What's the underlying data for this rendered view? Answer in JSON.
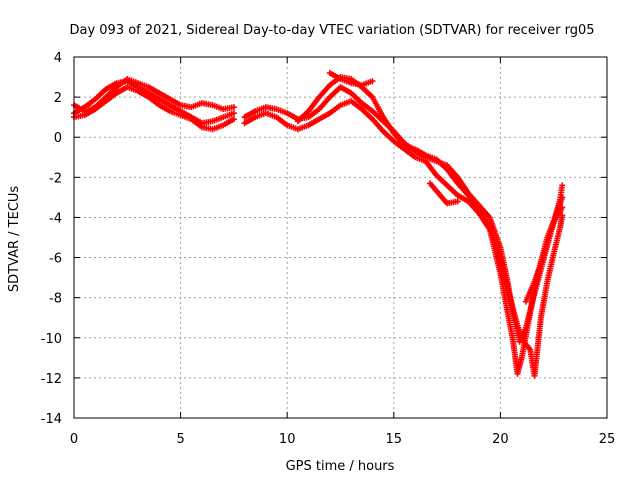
{
  "chart_data": {
    "type": "scatter",
    "title": "Day 093 of 2021, Sidereal Day-to-day VTEC variation (SDTVAR) for receiver rg05",
    "xlabel": "GPS time / hours",
    "ylabel": "SDTVAR / TECUs",
    "xlim": [
      0,
      25
    ],
    "ylim": [
      -14,
      4
    ],
    "xticks": [
      0,
      5,
      10,
      15,
      20,
      25
    ],
    "yticks": [
      -14,
      -12,
      -10,
      -8,
      -6,
      -4,
      -2,
      0,
      2,
      4
    ],
    "grid": true,
    "legend": "none",
    "marker": "plus",
    "color": "#ff0000",
    "series": [
      {
        "name": "track-1",
        "points": [
          [
            0.0,
            1.2
          ],
          [
            0.5,
            1.5
          ],
          [
            1.0,
            1.9
          ],
          [
            1.5,
            2.4
          ],
          [
            2.0,
            2.7
          ],
          [
            2.5,
            2.8
          ],
          [
            3.0,
            2.5
          ],
          [
            3.5,
            2.2
          ],
          [
            4.0,
            1.9
          ],
          [
            4.5,
            1.6
          ],
          [
            5.0,
            1.3
          ],
          [
            5.5,
            1.0
          ],
          [
            6.0,
            0.7
          ],
          [
            6.5,
            0.8
          ],
          [
            7.0,
            1.0
          ],
          [
            7.5,
            1.2
          ]
        ]
      },
      {
        "name": "track-2",
        "points": [
          [
            0.0,
            1.6
          ],
          [
            0.5,
            1.3
          ],
          [
            1.0,
            1.5
          ],
          [
            1.5,
            2.0
          ],
          [
            2.0,
            2.5
          ],
          [
            2.5,
            2.9
          ],
          [
            3.0,
            2.7
          ],
          [
            3.5,
            2.5
          ],
          [
            4.0,
            2.2
          ],
          [
            4.5,
            1.9
          ],
          [
            5.0,
            1.6
          ],
          [
            5.5,
            1.5
          ],
          [
            6.0,
            1.7
          ],
          [
            6.5,
            1.6
          ],
          [
            7.0,
            1.4
          ],
          [
            7.5,
            1.5
          ]
        ]
      },
      {
        "name": "track-3",
        "points": [
          [
            0.0,
            1.0
          ],
          [
            0.5,
            1.1
          ],
          [
            1.0,
            1.4
          ],
          [
            1.5,
            1.8
          ],
          [
            2.0,
            2.2
          ],
          [
            2.5,
            2.5
          ],
          [
            3.0,
            2.3
          ],
          [
            3.5,
            2.0
          ],
          [
            4.0,
            1.6
          ],
          [
            4.5,
            1.3
          ],
          [
            5.0,
            1.1
          ],
          [
            5.5,
            0.9
          ],
          [
            6.0,
            0.5
          ],
          [
            6.5,
            0.4
          ],
          [
            7.0,
            0.6
          ],
          [
            7.5,
            0.9
          ]
        ]
      },
      {
        "name": "track-4",
        "points": [
          [
            8.0,
            1.0
          ],
          [
            8.5,
            1.3
          ],
          [
            9.0,
            1.5
          ],
          [
            9.5,
            1.4
          ],
          [
            10.0,
            1.2
          ],
          [
            10.5,
            0.9
          ],
          [
            11.0,
            1.0
          ],
          [
            11.5,
            1.4
          ],
          [
            12.0,
            2.0
          ],
          [
            12.5,
            2.5
          ],
          [
            13.0,
            2.2
          ],
          [
            13.5,
            1.7
          ],
          [
            14.0,
            1.3
          ],
          [
            14.5,
            0.8
          ],
          [
            15.0,
            0.3
          ],
          [
            15.5,
            -0.3
          ],
          [
            16.0,
            -0.7
          ],
          [
            16.5,
            -1.0
          ],
          [
            17.0,
            -1.2
          ],
          [
            17.5,
            -1.4
          ],
          [
            18.0,
            -2.0
          ],
          [
            18.5,
            -2.8
          ],
          [
            19.0,
            -3.4
          ],
          [
            19.5,
            -4.0
          ],
          [
            20.0,
            -5.5
          ],
          [
            20.3,
            -7.0
          ],
          [
            20.6,
            -8.8
          ],
          [
            20.9,
            -10.2
          ],
          [
            21.2,
            -9.5
          ],
          [
            21.5,
            -8.2
          ],
          [
            21.8,
            -7.0
          ],
          [
            22.1,
            -5.8
          ],
          [
            22.4,
            -4.6
          ],
          [
            22.7,
            -3.6
          ],
          [
            22.9,
            -3.0
          ]
        ]
      },
      {
        "name": "track-5",
        "points": [
          [
            8.0,
            0.7
          ],
          [
            8.5,
            1.0
          ],
          [
            9.0,
            1.2
          ],
          [
            9.5,
            1.0
          ],
          [
            10.0,
            0.6
          ],
          [
            10.5,
            0.4
          ],
          [
            11.0,
            0.6
          ],
          [
            11.5,
            0.9
          ],
          [
            12.0,
            1.2
          ],
          [
            12.5,
            1.6
          ],
          [
            13.0,
            1.8
          ],
          [
            13.5,
            1.4
          ],
          [
            14.0,
            0.9
          ],
          [
            14.5,
            0.3
          ],
          [
            15.0,
            -0.2
          ],
          [
            15.5,
            -0.6
          ],
          [
            16.0,
            -1.0
          ],
          [
            16.5,
            -1.2
          ],
          [
            17.0,
            -1.9
          ],
          [
            17.5,
            -2.4
          ],
          [
            18.0,
            -2.9
          ],
          [
            18.5,
            -3.2
          ],
          [
            19.0,
            -3.8
          ],
          [
            19.5,
            -4.6
          ],
          [
            20.0,
            -6.8
          ],
          [
            20.3,
            -8.5
          ],
          [
            20.6,
            -10.2
          ],
          [
            20.8,
            -11.8
          ],
          [
            21.0,
            -11.0
          ],
          [
            21.3,
            -9.3
          ],
          [
            21.6,
            -7.6
          ],
          [
            21.9,
            -6.2
          ],
          [
            22.2,
            -5.0
          ],
          [
            22.5,
            -4.2
          ],
          [
            22.8,
            -3.7
          ],
          [
            22.9,
            -3.5
          ]
        ]
      },
      {
        "name": "track-6",
        "points": [
          [
            10.5,
            0.8
          ],
          [
            11.0,
            1.3
          ],
          [
            11.5,
            2.0
          ],
          [
            12.0,
            2.6
          ],
          [
            12.5,
            3.0
          ],
          [
            13.0,
            2.9
          ],
          [
            13.5,
            2.5
          ],
          [
            14.0,
            2.0
          ],
          [
            14.5,
            1.0
          ],
          [
            15.0,
            0.2
          ],
          [
            15.5,
            -0.4
          ],
          [
            16.0,
            -0.6
          ],
          [
            16.5,
            -0.9
          ],
          [
            17.0,
            -1.1
          ],
          [
            17.5,
            -1.6
          ],
          [
            18.0,
            -2.3
          ],
          [
            18.5,
            -2.9
          ],
          [
            19.0,
            -3.6
          ],
          [
            19.5,
            -4.5
          ],
          [
            20.0,
            -6.0
          ],
          [
            20.4,
            -7.8
          ],
          [
            20.8,
            -9.4
          ],
          [
            21.1,
            -10.2
          ],
          [
            21.4,
            -10.6
          ],
          [
            21.6,
            -11.9
          ],
          [
            21.9,
            -9.0
          ],
          [
            22.2,
            -7.2
          ],
          [
            22.5,
            -5.8
          ],
          [
            22.8,
            -4.5
          ],
          [
            22.9,
            -3.9
          ]
        ]
      },
      {
        "name": "track-7",
        "points": [
          [
            12.0,
            3.2
          ],
          [
            12.5,
            2.9
          ],
          [
            13.0,
            2.7
          ],
          [
            13.5,
            2.6
          ],
          [
            14.0,
            2.8
          ],
          [
            16.7,
            -2.3
          ],
          [
            17.1,
            -2.8
          ],
          [
            17.5,
            -3.3
          ],
          [
            18.0,
            -3.2
          ],
          [
            21.2,
            -8.2
          ],
          [
            21.6,
            -7.2
          ],
          [
            22.0,
            -6.0
          ],
          [
            22.4,
            -4.6
          ],
          [
            22.8,
            -3.1
          ],
          [
            22.9,
            -2.4
          ]
        ]
      }
    ]
  }
}
